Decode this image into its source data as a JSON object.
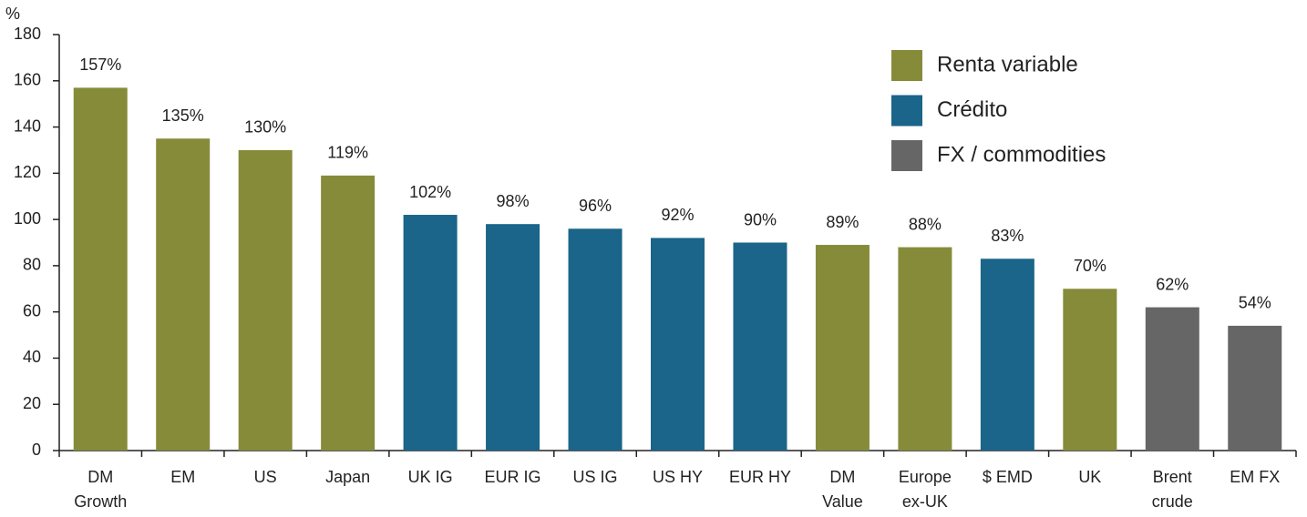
{
  "chart_data": {
    "type": "bar",
    "y_label": "%",
    "categories": [
      "DM\nGrowth",
      "EM",
      "US",
      "Japan",
      "UK IG",
      "EUR IG",
      "US IG",
      "US HY",
      "EUR HY",
      "DM\nValue",
      "Europe\nex-UK",
      "$ EMD",
      "UK",
      "Brent\ncrude",
      "EM FX"
    ],
    "series": [
      {
        "name": "Renta variable",
        "color": "#868b3a",
        "values": [
          157,
          135,
          130,
          119,
          null,
          null,
          null,
          null,
          null,
          89,
          88,
          null,
          70,
          null,
          null
        ],
        "value_labels": [
          "157%",
          "135%",
          "130%",
          "119%",
          null,
          null,
          null,
          null,
          null,
          "89%",
          "88%",
          null,
          "70%",
          null,
          null
        ]
      },
      {
        "name": "Crédito",
        "color": "#1a6589",
        "values": [
          null,
          null,
          null,
          null,
          102,
          98,
          96,
          92,
          90,
          null,
          null,
          83,
          null,
          null,
          null
        ],
        "value_labels": [
          null,
          null,
          null,
          null,
          "102%",
          "98%",
          "96%",
          "92%",
          "90%",
          null,
          null,
          "83%",
          null,
          null,
          null
        ]
      },
      {
        "name": "FX / commodities",
        "color": "#666666",
        "values": [
          null,
          null,
          null,
          null,
          null,
          null,
          null,
          null,
          null,
          null,
          null,
          null,
          null,
          62,
          54
        ],
        "value_labels": [
          null,
          null,
          null,
          null,
          null,
          null,
          null,
          null,
          null,
          null,
          null,
          null,
          null,
          "62%",
          "54%"
        ]
      }
    ],
    "ylim": [
      0,
      180
    ],
    "yticks": [
      0,
      20,
      40,
      60,
      80,
      100,
      120,
      140,
      160,
      180
    ],
    "legend": "top-right"
  }
}
